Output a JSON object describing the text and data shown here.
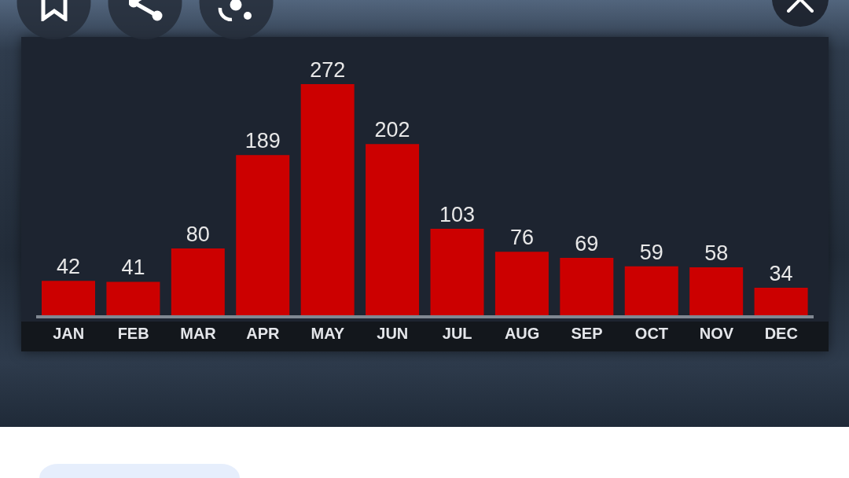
{
  "chart_data": {
    "type": "bar",
    "categories": [
      "JAN",
      "FEB",
      "MAR",
      "APR",
      "MAY",
      "JUN",
      "JUL",
      "AUG",
      "SEP",
      "OCT",
      "NOV",
      "DEC"
    ],
    "values": [
      42,
      41,
      80,
      189,
      272,
      202,
      103,
      76,
      69,
      59,
      58,
      34
    ],
    "color": "#cc0000",
    "data_labels": true
  }
}
